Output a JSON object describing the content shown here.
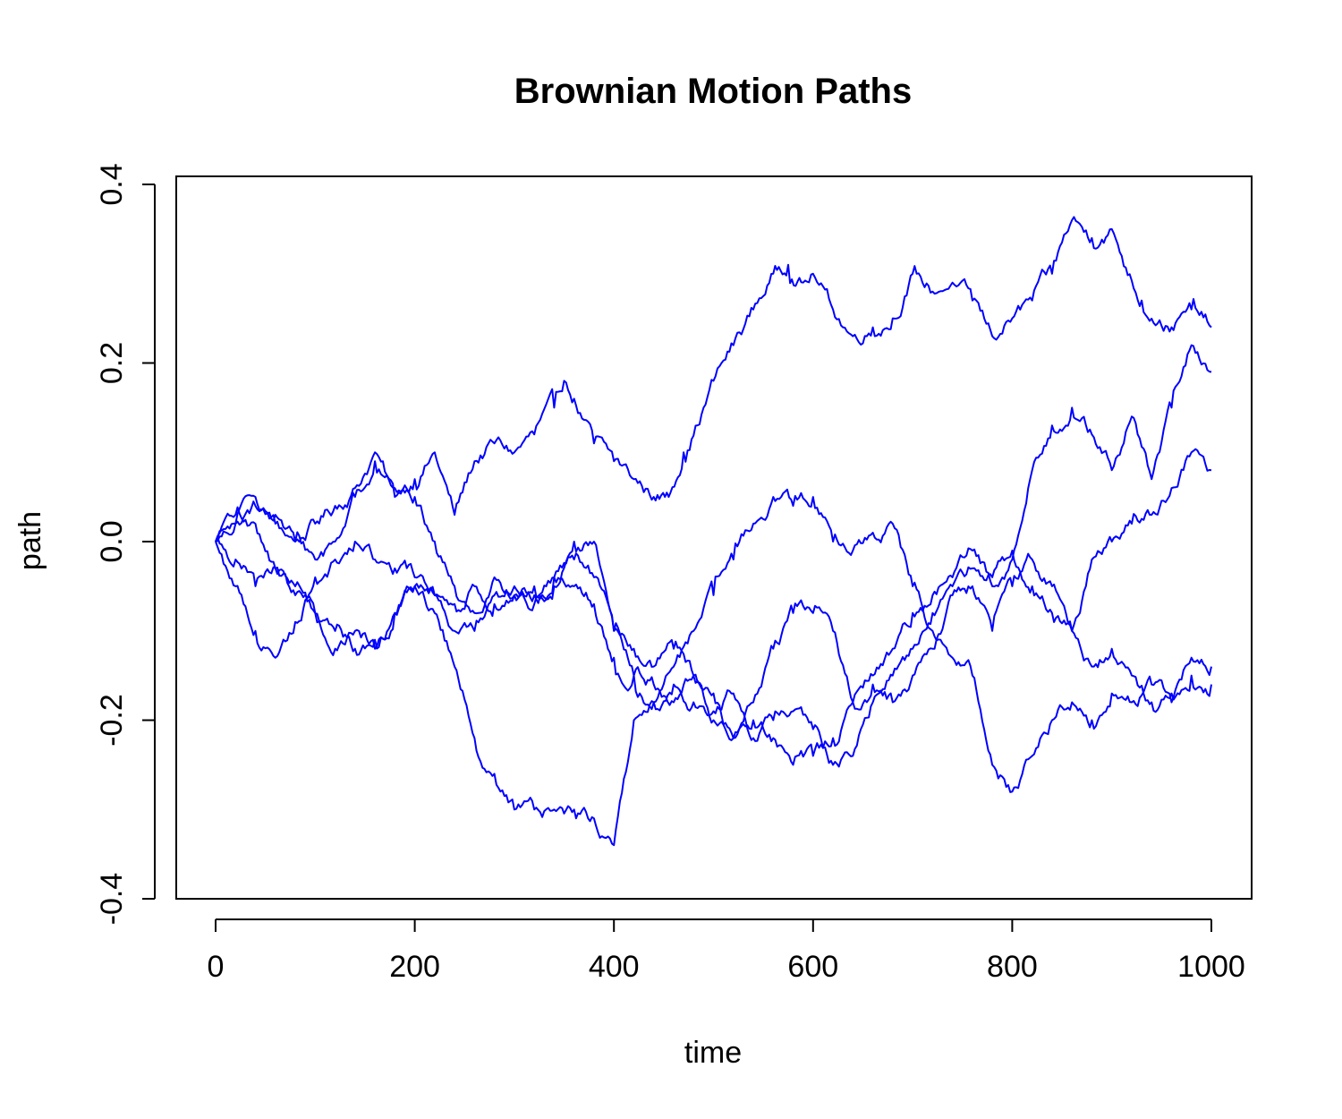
{
  "chart_data": {
    "type": "line",
    "title": "Brownian Motion Paths",
    "xlabel": "time",
    "ylabel": "path",
    "xlim": [
      0,
      1000
    ],
    "ylim": [
      -0.4,
      0.4
    ],
    "x_ticks": [
      {
        "value": 0,
        "label": "0"
      },
      {
        "value": 200,
        "label": "200"
      },
      {
        "value": 400,
        "label": "400"
      },
      {
        "value": 600,
        "label": "600"
      },
      {
        "value": 800,
        "label": "800"
      },
      {
        "value": 1000,
        "label": "1000"
      }
    ],
    "y_ticks": [
      {
        "value": -0.4,
        "label": "-0.4"
      },
      {
        "value": -0.2,
        "label": "-0.2"
      },
      {
        "value": 0.0,
        "label": "0.0"
      },
      {
        "value": 0.2,
        "label": "0.2"
      },
      {
        "value": 0.4,
        "label": "0.4"
      }
    ],
    "grid": false,
    "legend": "none",
    "line_color": "#0000ff",
    "series": [
      {
        "x": [
          0,
          20,
          40,
          60,
          80,
          100,
          120,
          140,
          160,
          180,
          200,
          220,
          240,
          260,
          280,
          300,
          320,
          340,
          350,
          360,
          380,
          400,
          420,
          440,
          455,
          470,
          490,
          500,
          520,
          540,
          560,
          575,
          590,
          600,
          620,
          640,
          660,
          680,
          700,
          720,
          740,
          760,
          780,
          800,
          820,
          840,
          860,
          880,
          900,
          910,
          930,
          960,
          980,
          1000
        ],
        "values": [
          0.0,
          0.02,
          0.04,
          0.02,
          0.0,
          0.02,
          0.04,
          0.06,
          0.1,
          0.05,
          0.07,
          0.1,
          0.03,
          0.09,
          0.11,
          0.1,
          0.12,
          0.15,
          0.18,
          0.16,
          0.11,
          0.09,
          0.07,
          0.05,
          0.05,
          0.1,
          0.15,
          0.18,
          0.22,
          0.26,
          0.3,
          0.31,
          0.29,
          0.3,
          0.26,
          0.23,
          0.24,
          0.25,
          0.3,
          0.28,
          0.29,
          0.27,
          0.23,
          0.25,
          0.27,
          0.3,
          0.36,
          0.34,
          0.35,
          0.32,
          0.27,
          0.24,
          0.26,
          0.24
        ]
      },
      {
        "x": [
          0,
          20,
          40,
          60,
          80,
          100,
          120,
          140,
          160,
          180,
          200,
          220,
          240,
          260,
          280,
          300,
          320,
          340,
          360,
          380,
          400,
          420,
          440,
          460,
          480,
          500,
          520,
          540,
          560,
          580,
          600,
          620,
          640,
          660,
          680,
          700,
          720,
          740,
          760,
          780,
          800,
          820,
          840,
          860,
          880,
          900,
          920,
          940,
          960,
          980,
          1000
        ],
        "values": [
          0.0,
          0.02,
          0.05,
          0.03,
          0.0,
          -0.02,
          0.0,
          0.05,
          0.09,
          0.06,
          0.05,
          0.0,
          -0.05,
          -0.08,
          -0.04,
          -0.06,
          -0.07,
          -0.04,
          -0.02,
          -0.04,
          -0.1,
          -0.15,
          -0.16,
          -0.18,
          -0.15,
          -0.17,
          -0.22,
          -0.2,
          -0.22,
          -0.25,
          -0.24,
          -0.22,
          -0.18,
          -0.15,
          -0.12,
          -0.08,
          -0.06,
          -0.04,
          -0.01,
          -0.05,
          -0.02,
          0.08,
          0.13,
          0.15,
          0.12,
          0.08,
          0.14,
          0.07,
          0.15,
          0.22,
          0.19
        ]
      },
      {
        "x": [
          0,
          20,
          40,
          60,
          80,
          100,
          120,
          140,
          160,
          180,
          200,
          220,
          240,
          260,
          280,
          300,
          320,
          340,
          360,
          380,
          400,
          420,
          440,
          460,
          480,
          500,
          520,
          540,
          560,
          580,
          600,
          620,
          640,
          660,
          680,
          700,
          720,
          740,
          760,
          780,
          800,
          820,
          840,
          860,
          880,
          900,
          920,
          940,
          960,
          980,
          1000
        ],
        "values": [
          0.0,
          -0.02,
          -0.05,
          -0.03,
          -0.06,
          -0.08,
          -0.1,
          -0.12,
          -0.11,
          -0.08,
          -0.05,
          -0.08,
          -0.14,
          -0.22,
          -0.26,
          -0.3,
          -0.3,
          -0.3,
          -0.3,
          -0.31,
          -0.34,
          -0.2,
          -0.18,
          -0.14,
          -0.1,
          -0.06,
          -0.02,
          0.02,
          0.05,
          0.04,
          0.05,
          0.0,
          -0.01,
          0.01,
          0.02,
          -0.05,
          -0.1,
          -0.13,
          -0.15,
          -0.25,
          -0.28,
          -0.24,
          -0.2,
          -0.18,
          -0.2,
          -0.17,
          -0.18,
          -0.16,
          -0.18,
          -0.13,
          -0.14
        ]
      },
      {
        "x": [
          0,
          20,
          40,
          60,
          80,
          100,
          120,
          140,
          160,
          180,
          200,
          220,
          240,
          260,
          280,
          300,
          320,
          340,
          360,
          380,
          400,
          420,
          440,
          460,
          480,
          500,
          520,
          540,
          560,
          580,
          600,
          620,
          640,
          660,
          680,
          700,
          720,
          740,
          760,
          780,
          800,
          820,
          840,
          860,
          880,
          900,
          920,
          940,
          960,
          980,
          1000
        ],
        "values": [
          0.0,
          -0.05,
          -0.1,
          -0.13,
          -0.09,
          -0.04,
          -0.02,
          0.0,
          -0.02,
          -0.03,
          -0.04,
          -0.06,
          -0.07,
          -0.05,
          -0.07,
          -0.06,
          -0.05,
          -0.04,
          -0.05,
          -0.07,
          -0.13,
          -0.15,
          -0.18,
          -0.16,
          -0.18,
          -0.19,
          -0.17,
          -0.22,
          -0.2,
          -0.19,
          -0.21,
          -0.25,
          -0.24,
          -0.18,
          -0.15,
          -0.12,
          -0.08,
          -0.05,
          -0.03,
          -0.04,
          -0.01,
          -0.05,
          -0.08,
          -0.1,
          -0.02,
          0.0,
          0.02,
          0.03,
          0.06,
          0.1,
          0.08
        ]
      },
      {
        "x": [
          0,
          20,
          40,
          60,
          80,
          100,
          120,
          140,
          160,
          180,
          200,
          220,
          240,
          260,
          280,
          300,
          320,
          340,
          360,
          380,
          400,
          420,
          440,
          460,
          480,
          500,
          520,
          540,
          560,
          580,
          600,
          620,
          640,
          660,
          680,
          700,
          720,
          740,
          760,
          780,
          800,
          820,
          840,
          860,
          880,
          900,
          920,
          940,
          960,
          980,
          1000
        ],
        "values": [
          0.0,
          0.03,
          0.02,
          -0.03,
          -0.05,
          -0.08,
          -0.12,
          -0.1,
          -0.12,
          -0.08,
          -0.05,
          -0.06,
          -0.1,
          -0.1,
          -0.06,
          -0.05,
          -0.06,
          -0.05,
          0.0,
          0.0,
          -0.1,
          -0.12,
          -0.14,
          -0.12,
          -0.15,
          -0.2,
          -0.22,
          -0.18,
          -0.12,
          -0.08,
          -0.08,
          -0.1,
          -0.18,
          -0.16,
          -0.18,
          -0.15,
          -0.12,
          -0.06,
          -0.05,
          -0.1,
          -0.05,
          -0.02,
          -0.05,
          -0.1,
          -0.14,
          -0.12,
          -0.15,
          -0.18,
          -0.17,
          -0.15,
          -0.16
        ]
      }
    ]
  }
}
